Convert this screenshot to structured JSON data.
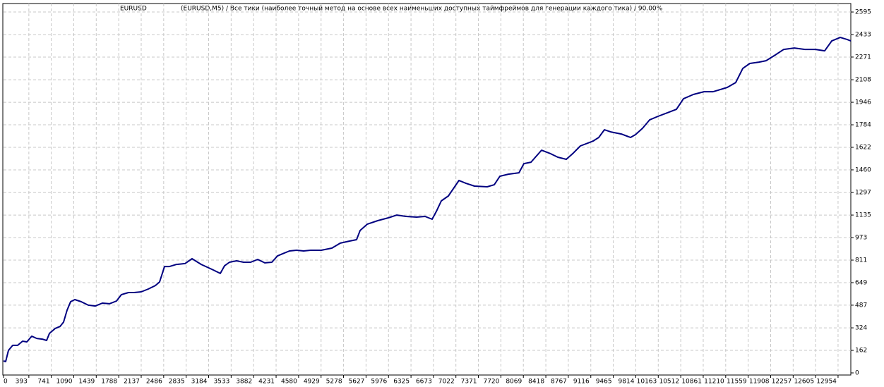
{
  "chart_data": {
    "type": "line",
    "title": "EURUSD",
    "subtitle": "(EURUSD,M5) / Все тики (наиболее точный метод на основе всех наименьших доступных таймфреймов для генерации каждого тика) / 90.00%",
    "x": [
      0,
      33,
      77,
      142,
      219,
      296,
      362,
      438,
      515,
      603,
      669,
      712,
      800,
      877,
      932,
      986,
      1041,
      1107,
      1206,
      1315,
      1425,
      1534,
      1644,
      1754,
      1830,
      1940,
      2028,
      2137,
      2247,
      2356,
      2422,
      2499,
      2576,
      2685,
      2817,
      2926,
      3069,
      3233,
      3365,
      3430,
      3507,
      3617,
      3726,
      3836,
      3946,
      4055,
      4165,
      4252,
      4329,
      4439,
      4548,
      4658,
      4768,
      4932,
      5096,
      5228,
      5370,
      5480,
      5535,
      5644,
      5809,
      5973,
      6105,
      6247,
      6412,
      6543,
      6653,
      6718,
      6795,
      6905,
      7069,
      7179,
      7310,
      7508,
      7617,
      7705,
      7836,
      8001,
      8078,
      8187,
      8352,
      8494,
      8604,
      8735,
      8845,
      8954,
      9097,
      9152,
      9239,
      9327,
      9426,
      9590,
      9732,
      9809,
      9919,
      10028,
      10160,
      10302,
      10445,
      10554,
      10708,
      10872,
      11015,
      11124,
      11234,
      11366,
      11475,
      11585,
      11727,
      11837,
      11979,
      12111,
      12275,
      12440,
      12604,
      12746,
      12856,
      12988,
      13097,
      13152
    ],
    "values": [
      86,
      81,
      162,
      198,
      198,
      228,
      223,
      264,
      248,
      243,
      233,
      284,
      319,
      334,
      365,
      451,
      512,
      527,
      512,
      487,
      481,
      502,
      497,
      517,
      563,
      578,
      578,
      583,
      603,
      628,
      654,
      765,
      765,
      780,
      786,
      821,
      780,
      745,
      715,
      770,
      796,
      806,
      796,
      796,
      816,
      791,
      796,
      841,
      856,
      877,
      882,
      877,
      882,
      882,
      897,
      933,
      948,
      958,
      1024,
      1069,
      1095,
      1115,
      1135,
      1125,
      1120,
      1125,
      1105,
      1161,
      1237,
      1272,
      1384,
      1363,
      1343,
      1338,
      1353,
      1414,
      1429,
      1439,
      1505,
      1515,
      1601,
      1576,
      1551,
      1536,
      1581,
      1632,
      1657,
      1667,
      1693,
      1748,
      1733,
      1718,
      1693,
      1713,
      1759,
      1819,
      1845,
      1870,
      1895,
      1971,
      2002,
      2022,
      2022,
      2037,
      2053,
      2088,
      2189,
      2225,
      2235,
      2245,
      2286,
      2326,
      2336,
      2326,
      2326,
      2316,
      2387,
      2412,
      2397,
      2387
    ],
    "color": "#000080",
    "xlim": [
      0,
      13152
    ],
    "ylim": [
      0,
      2656
    ],
    "xticks": [
      0,
      393,
      741,
      1090,
      1439,
      1788,
      2137,
      2486,
      2835,
      3184,
      3533,
      3882,
      4231,
      4580,
      4929,
      5278,
      5627,
      5976,
      6325,
      6673,
      7022,
      7371,
      7720,
      8069,
      8418,
      8767,
      9116,
      9465,
      9814,
      10163,
      10512,
      10861,
      11210,
      11559,
      11908,
      12257,
      12605,
      12954
    ],
    "yticks": [
      0,
      162,
      324,
      487,
      649,
      811,
      973,
      1135,
      1297,
      1460,
      1622,
      1784,
      1946,
      2108,
      2271,
      2433,
      2595
    ],
    "grid": true
  }
}
